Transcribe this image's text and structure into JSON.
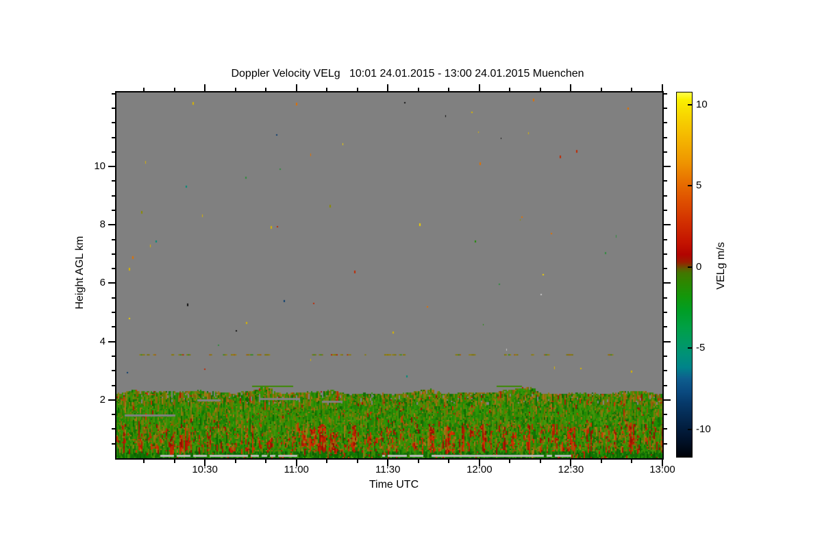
{
  "page": {
    "background": "#ffffff"
  },
  "chart_data": {
    "type": "heatmap",
    "title": "Doppler Velocity VELg   10:01 24.01.2015 - 13:00 24.01.2015 Muenchen",
    "xlabel": "Time UTC",
    "ylabel": "Height AGL km",
    "x_axis": {
      "start": "10:01",
      "end": "13:00",
      "total_minutes": 179,
      "major_ticks": [
        {
          "label": "10:30",
          "minutes": 29
        },
        {
          "label": "11:00",
          "minutes": 59
        },
        {
          "label": "11:30",
          "minutes": 89
        },
        {
          "label": "12:00",
          "minutes": 119
        },
        {
          "label": "12:30",
          "minutes": 149
        },
        {
          "label": "13:00",
          "minutes": 179
        }
      ],
      "minor_tick_interval_minutes": 10
    },
    "y_axis": {
      "min_km": 0,
      "max_km": 12.54,
      "major_ticks_km": [
        2,
        4,
        6,
        8,
        10
      ],
      "minor_tick_interval_km": 0.5
    },
    "colorbar": {
      "label": "VELg m/s",
      "units": "m/s",
      "vmin": -11.7,
      "vmax": 10.76,
      "ticks": [
        10,
        5,
        0,
        -5,
        -10
      ],
      "gradient_stops": [
        [
          0,
          "#ffff4a"
        ],
        [
          2,
          "#faf000"
        ],
        [
          7,
          "#f7d200"
        ],
        [
          13,
          "#f4b400"
        ],
        [
          19,
          "#ef9600"
        ],
        [
          24.5,
          "#e87000"
        ],
        [
          30,
          "#de4e00"
        ],
        [
          35.5,
          "#d23000"
        ],
        [
          41,
          "#c41400"
        ],
        [
          44.5,
          "#b20400"
        ],
        [
          46.5,
          "#9c1c00"
        ],
        [
          47.5,
          "#7e3c00"
        ],
        [
          48.5,
          "#5c6000"
        ],
        [
          49.5,
          "#427600"
        ],
        [
          52,
          "#2e8600"
        ],
        [
          56,
          "#13970a"
        ],
        [
          60,
          "#009e26"
        ],
        [
          64.5,
          "#00a046"
        ],
        [
          68.5,
          "#009a62"
        ],
        [
          72,
          "#009178"
        ],
        [
          75.5,
          "#00838a"
        ],
        [
          78.5,
          "#0e5e8e"
        ],
        [
          82,
          "#0a4a80"
        ],
        [
          85.5,
          "#063868"
        ],
        [
          89,
          "#042a52"
        ],
        [
          92.5,
          "#021c3c"
        ],
        [
          96,
          "#011026"
        ],
        [
          100,
          "#000208"
        ]
      ]
    },
    "no_data_color": "#808080",
    "features": {
      "no_data_region": "uniform gray above ~2.3 km AGL with sparse single-pixel multicolor speckle noise",
      "boundary_layer": {
        "top_km": 2.3,
        "description": "continuous Doppler velocity field below ~2.3 km: mostly weak negative (green, -1..-3 m/s) with near-zero olive/brown patches aloft and vertical red updraft streaks (+2..+5 m/s) concentrated between 0.3 and 1.2 km; darker green near the surface"
      },
      "artifact_line": {
        "height_km": 3.57,
        "description": "intermittent olive/dark-yellow dashed interference line spanning roughly 10:01-12:45"
      },
      "render": {
        "seed": 1337,
        "boundary_layer_top_km": 2.3,
        "artifact_line_km": 3.57,
        "light_gray": "#bdbdbd",
        "palettes": {
          "green": [
            "#1f8c04",
            "#2e9406",
            "#3b8a02",
            "#45940a",
            "#228006"
          ],
          "olive": [
            "#6e7a00",
            "#7a7a08",
            "#5f7c00",
            "#8a7c10"
          ],
          "brown": [
            "#96600a",
            "#a0660c",
            "#8a5a06",
            "#a87414"
          ],
          "red": [
            "#c02800",
            "#b41c00",
            "#a81400",
            "#d23000",
            "#921000"
          ],
          "dark_green": [
            "#0e7a02",
            "#127004",
            "#0a6a00",
            "#156c08"
          ],
          "line": [
            "#8a7a00",
            "#94800a",
            "#7e7400"
          ]
        },
        "speckle_count": 58,
        "speckle_colors": [
          "#d8b400",
          "#f0d000",
          "#e07000",
          "#c02800",
          "#2e8c3c",
          "#1f8c04",
          "#008c78",
          "#0a3c6e",
          "#101010",
          "#8c8c00",
          "#c8c8c8"
        ]
      }
    }
  }
}
